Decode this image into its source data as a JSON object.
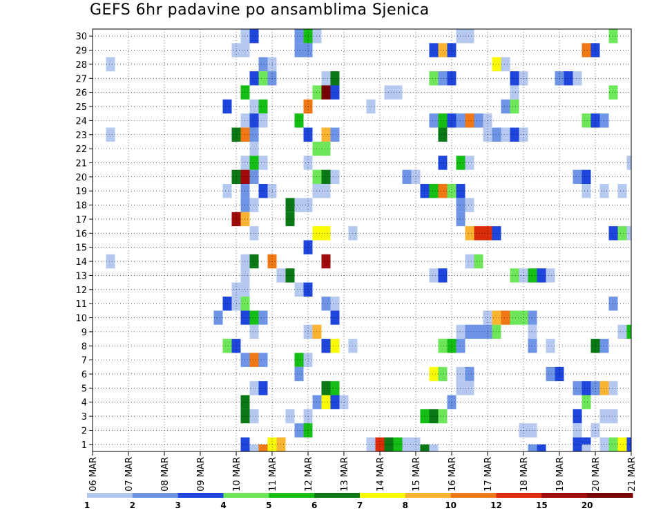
{
  "chart_data": {
    "type": "heatmap",
    "title": "GEFS 6hr padavine po ansamblima Sjenica",
    "x_ticks": [
      "06 MAR",
      "07 MAR",
      "08 MAR",
      "09 MAR",
      "10 MAR",
      "11 MAR",
      "12 MAR",
      "13 MAR",
      "14 MAR",
      "15 MAR",
      "16 MAR",
      "17 MAR",
      "18 MAR",
      "19 MAR",
      "20 MAR",
      "21 MAR"
    ],
    "y_ticks": [
      "1",
      "2",
      "3",
      "4",
      "5",
      "6",
      "7",
      "8",
      "9",
      "10",
      "11",
      "12",
      "13",
      "14",
      "15",
      "16",
      "17",
      "18",
      "19",
      "20",
      "21",
      "22",
      "23",
      "24",
      "25",
      "26",
      "27",
      "28",
      "29",
      "30"
    ],
    "xlim": [
      0,
      15
    ],
    "ylim": [
      0.5,
      30.5
    ],
    "grid": true,
    "colorbar": {
      "levels": [
        "1",
        "2",
        "3",
        "4",
        "5",
        "6",
        "7",
        "8",
        "10",
        "12",
        "15",
        "20"
      ],
      "colors": [
        "#b4c8f0",
        "#6e94e6",
        "#1e46dc",
        "#6ee65a",
        "#14be14",
        "#0a7814",
        "#fafa00",
        "#fab432",
        "#f07814",
        "#dc2d0a",
        "#a00a0a",
        "#780000"
      ]
    },
    "cells": [
      [
        4.25,
        30,
        0
      ],
      [
        4.5,
        30,
        2
      ],
      [
        5.75,
        30,
        1
      ],
      [
        6,
        30,
        4
      ],
      [
        6.25,
        30,
        0
      ],
      [
        10.25,
        30,
        0
      ],
      [
        10.5,
        30,
        0
      ],
      [
        14.5,
        30,
        3
      ],
      [
        4.0,
        29,
        0
      ],
      [
        4.25,
        29,
        0
      ],
      [
        5.75,
        29,
        1
      ],
      [
        6.0,
        29,
        1
      ],
      [
        9.5,
        29,
        2
      ],
      [
        9.75,
        29,
        7
      ],
      [
        10.0,
        29,
        2
      ],
      [
        13.75,
        29,
        8
      ],
      [
        14.0,
        29,
        2
      ],
      [
        0.5,
        28,
        0
      ],
      [
        4.75,
        28,
        1
      ],
      [
        5.0,
        28,
        0
      ],
      [
        11.25,
        28,
        6
      ],
      [
        11.5,
        28,
        0
      ],
      [
        4.5,
        27,
        2
      ],
      [
        4.75,
        27,
        3
      ],
      [
        5.0,
        27,
        1
      ],
      [
        6.5,
        27,
        0
      ],
      [
        6.75,
        27,
        5
      ],
      [
        9.5,
        27,
        3
      ],
      [
        9.75,
        27,
        1
      ],
      [
        10.0,
        27,
        2
      ],
      [
        11.75,
        27,
        2
      ],
      [
        12.0,
        27,
        0
      ],
      [
        13.0,
        27,
        1
      ],
      [
        13.25,
        27,
        2
      ],
      [
        13.5,
        27,
        0
      ],
      [
        4.25,
        26,
        4
      ],
      [
        6.25,
        26,
        3
      ],
      [
        6.5,
        26,
        11
      ],
      [
        6.75,
        26,
        2
      ],
      [
        8.25,
        26,
        0
      ],
      [
        8.5,
        26,
        0
      ],
      [
        11.75,
        26,
        0
      ],
      [
        14.5,
        26,
        3
      ],
      [
        3.75,
        25,
        2
      ],
      [
        4.5,
        25,
        0
      ],
      [
        4.75,
        25,
        4
      ],
      [
        6.0,
        25,
        8
      ],
      [
        7.75,
        25,
        0
      ],
      [
        11.5,
        25,
        1
      ],
      [
        11.75,
        25,
        3
      ],
      [
        4.25,
        24,
        0
      ],
      [
        4.5,
        24,
        2
      ],
      [
        4.75,
        24,
        0
      ],
      [
        5.75,
        24,
        4
      ],
      [
        9.5,
        24,
        1
      ],
      [
        9.75,
        24,
        4
      ],
      [
        10.0,
        24,
        2
      ],
      [
        10.25,
        24,
        1
      ],
      [
        10.5,
        24,
        8
      ],
      [
        10.75,
        24,
        1
      ],
      [
        11.0,
        24,
        0
      ],
      [
        13.75,
        24,
        3
      ],
      [
        14.0,
        24,
        2
      ],
      [
        14.25,
        24,
        1
      ],
      [
        0.5,
        23,
        0
      ],
      [
        4.0,
        23,
        5
      ],
      [
        4.25,
        23,
        8
      ],
      [
        4.5,
        23,
        1
      ],
      [
        6.0,
        23,
        2
      ],
      [
        6.5,
        23,
        7
      ],
      [
        6.75,
        23,
        1
      ],
      [
        9.75,
        23,
        5
      ],
      [
        11.0,
        23,
        0
      ],
      [
        11.25,
        23,
        1
      ],
      [
        11.5,
        23,
        0
      ],
      [
        11.75,
        23,
        2
      ],
      [
        12.0,
        23,
        0
      ],
      [
        4.5,
        22,
        0
      ],
      [
        6.25,
        22,
        3
      ],
      [
        6.5,
        22,
        3
      ],
      [
        4.25,
        21,
        0
      ],
      [
        4.5,
        21,
        4
      ],
      [
        4.75,
        21,
        0
      ],
      [
        6.0,
        21,
        0
      ],
      [
        9.75,
        21,
        2
      ],
      [
        10.25,
        21,
        4
      ],
      [
        10.5,
        21,
        0
      ],
      [
        15.0,
        21,
        0
      ],
      [
        4.0,
        20,
        5
      ],
      [
        4.25,
        20,
        10
      ],
      [
        4.5,
        20,
        1
      ],
      [
        6.25,
        20,
        3
      ],
      [
        6.5,
        20,
        5
      ],
      [
        6.75,
        20,
        0
      ],
      [
        8.75,
        20,
        1
      ],
      [
        9.0,
        20,
        0
      ],
      [
        13.5,
        20,
        1
      ],
      [
        13.75,
        20,
        2
      ],
      [
        3.75,
        19,
        0
      ],
      [
        4.25,
        19,
        1
      ],
      [
        4.75,
        19,
        2
      ],
      [
        5.0,
        19,
        0
      ],
      [
        6.25,
        19,
        0
      ],
      [
        6.5,
        19,
        0
      ],
      [
        9.25,
        19,
        2
      ],
      [
        9.5,
        19,
        4
      ],
      [
        9.75,
        19,
        8
      ],
      [
        10.0,
        19,
        3
      ],
      [
        10.25,
        19,
        2
      ],
      [
        13.75,
        19,
        0
      ],
      [
        14.25,
        19,
        0
      ],
      [
        14.75,
        19,
        0
      ],
      [
        4.25,
        18,
        1
      ],
      [
        4.5,
        18,
        0
      ],
      [
        5.5,
        18,
        5
      ],
      [
        5.75,
        18,
        0
      ],
      [
        6.0,
        18,
        0
      ],
      [
        10.25,
        18,
        1
      ],
      [
        10.5,
        18,
        0
      ],
      [
        4.0,
        17,
        10
      ],
      [
        4.25,
        17,
        7
      ],
      [
        5.5,
        17,
        5
      ],
      [
        10.25,
        17,
        1
      ],
      [
        4.5,
        16,
        0
      ],
      [
        6.25,
        16,
        6
      ],
      [
        6.5,
        16,
        6
      ],
      [
        7.25,
        16,
        0
      ],
      [
        10.5,
        16,
        7
      ],
      [
        10.75,
        16,
        9
      ],
      [
        11.0,
        16,
        9
      ],
      [
        11.25,
        16,
        2
      ],
      [
        14.5,
        16,
        2
      ],
      [
        14.75,
        16,
        3
      ],
      [
        15.0,
        16,
        0
      ],
      [
        6.0,
        15,
        2
      ],
      [
        0.5,
        14,
        0
      ],
      [
        4.25,
        14,
        0
      ],
      [
        4.5,
        14,
        5
      ],
      [
        5.0,
        14,
        8
      ],
      [
        6.5,
        14,
        10
      ],
      [
        10.5,
        14,
        0
      ],
      [
        10.75,
        14,
        3
      ],
      [
        4.25,
        13,
        0
      ],
      [
        5.25,
        13,
        0
      ],
      [
        5.5,
        13,
        5
      ],
      [
        9.5,
        13,
        0
      ],
      [
        9.75,
        13,
        2
      ],
      [
        11.75,
        13,
        3
      ],
      [
        12.0,
        13,
        0
      ],
      [
        12.25,
        13,
        4
      ],
      [
        12.5,
        13,
        2
      ],
      [
        12.75,
        13,
        0
      ],
      [
        4.0,
        12,
        0
      ],
      [
        4.25,
        12,
        0
      ],
      [
        5.75,
        12,
        0
      ],
      [
        6.0,
        12,
        2
      ],
      [
        3.75,
        11,
        2
      ],
      [
        4.0,
        11,
        0
      ],
      [
        4.25,
        11,
        3
      ],
      [
        6.5,
        11,
        1
      ],
      [
        6.75,
        11,
        0
      ],
      [
        14.5,
        11,
        1
      ],
      [
        3.5,
        10,
        1
      ],
      [
        4.25,
        10,
        2
      ],
      [
        4.5,
        10,
        4
      ],
      [
        4.75,
        10,
        1
      ],
      [
        6.75,
        10,
        2
      ],
      [
        11.0,
        10,
        0
      ],
      [
        11.25,
        10,
        7
      ],
      [
        11.5,
        10,
        8
      ],
      [
        11.75,
        10,
        3
      ],
      [
        12.0,
        10,
        3
      ],
      [
        12.25,
        10,
        1
      ],
      [
        4.5,
        9,
        0
      ],
      [
        6.0,
        9,
        0
      ],
      [
        6.25,
        9,
        7
      ],
      [
        10.25,
        9,
        0
      ],
      [
        10.5,
        9,
        1
      ],
      [
        10.75,
        9,
        1
      ],
      [
        11.0,
        9,
        1
      ],
      [
        11.25,
        9,
        3
      ],
      [
        12.25,
        9,
        0
      ],
      [
        14.75,
        9,
        0
      ],
      [
        15.0,
        9,
        4
      ],
      [
        3.75,
        8,
        3
      ],
      [
        4.0,
        8,
        2
      ],
      [
        6.5,
        8,
        2
      ],
      [
        6.75,
        8,
        6
      ],
      [
        7.25,
        8,
        0
      ],
      [
        9.75,
        8,
        3
      ],
      [
        10.0,
        8,
        4
      ],
      [
        10.25,
        8,
        1
      ],
      [
        12.25,
        8,
        1
      ],
      [
        12.75,
        8,
        0
      ],
      [
        14.0,
        8,
        5
      ],
      [
        14.25,
        8,
        1
      ],
      [
        4.25,
        7,
        1
      ],
      [
        4.5,
        7,
        8
      ],
      [
        4.75,
        7,
        1
      ],
      [
        5.75,
        7,
        4
      ],
      [
        6.0,
        7,
        0
      ],
      [
        5.75,
        6,
        1
      ],
      [
        9.5,
        6,
        6
      ],
      [
        9.75,
        6,
        3
      ],
      [
        10.25,
        6,
        0
      ],
      [
        10.5,
        6,
        1
      ],
      [
        12.75,
        6,
        1
      ],
      [
        13.0,
        6,
        2
      ],
      [
        4.5,
        5,
        0
      ],
      [
        4.75,
        5,
        2
      ],
      [
        6.5,
        5,
        5
      ],
      [
        6.75,
        5,
        4
      ],
      [
        10.25,
        5,
        0
      ],
      [
        10.5,
        5,
        0
      ],
      [
        13.5,
        5,
        1
      ],
      [
        13.75,
        5,
        2
      ],
      [
        14.0,
        5,
        1
      ],
      [
        14.25,
        5,
        7
      ],
      [
        14.5,
        5,
        0
      ],
      [
        4.25,
        4,
        5
      ],
      [
        6.25,
        4,
        1
      ],
      [
        6.5,
        4,
        6
      ],
      [
        6.75,
        4,
        2
      ],
      [
        7.0,
        4,
        0
      ],
      [
        10.0,
        4,
        1
      ],
      [
        13.75,
        4,
        3
      ],
      [
        4.25,
        3,
        5
      ],
      [
        4.5,
        3,
        0
      ],
      [
        5.5,
        3,
        0
      ],
      [
        6.0,
        3,
        0
      ],
      [
        9.25,
        3,
        4
      ],
      [
        9.5,
        3,
        5
      ],
      [
        9.75,
        3,
        3
      ],
      [
        13.5,
        3,
        2
      ],
      [
        14.25,
        3,
        0
      ],
      [
        14.5,
        3,
        0
      ],
      [
        5.75,
        2,
        1
      ],
      [
        6.0,
        2,
        4
      ],
      [
        12.0,
        2,
        0
      ],
      [
        12.25,
        2,
        0
      ],
      [
        13.5,
        2,
        0
      ],
      [
        14.0,
        2,
        0
      ],
      [
        4.25,
        1,
        2
      ],
      [
        5.0,
        1,
        6
      ],
      [
        5.25,
        1,
        7
      ],
      [
        7.75,
        1,
        0
      ],
      [
        8.0,
        1,
        9
      ],
      [
        8.25,
        1,
        5
      ],
      [
        8.5,
        1,
        4
      ],
      [
        8.75,
        1,
        0
      ],
      [
        9.0,
        1,
        0
      ],
      [
        13.5,
        1,
        2
      ],
      [
        13.75,
        1,
        2
      ],
      [
        14.25,
        1,
        0
      ],
      [
        14.5,
        1,
        3
      ],
      [
        14.75,
        1,
        6
      ],
      [
        15.0,
        1,
        2
      ],
      [
        4.75,
        0.5,
        8
      ],
      [
        4.5,
        0.5,
        0
      ],
      [
        9.25,
        0.5,
        5
      ],
      [
        9.5,
        0.5,
        0
      ],
      [
        12.25,
        0.5,
        1
      ],
      [
        12.5,
        0.5,
        2
      ],
      [
        13.75,
        0.5,
        0
      ]
    ]
  }
}
